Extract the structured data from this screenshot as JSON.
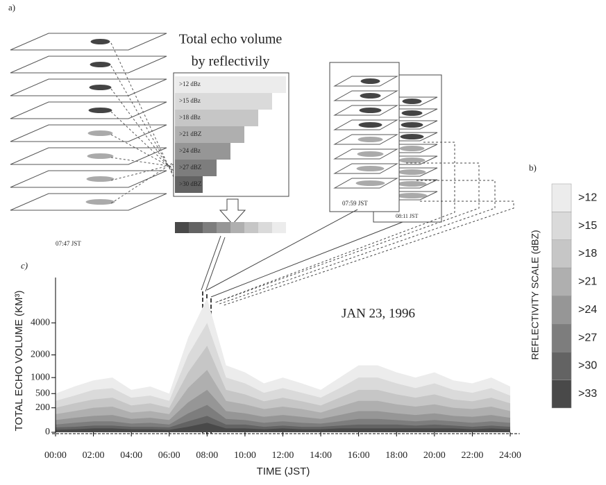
{
  "chart_data": {
    "type": "area",
    "title": "JAN 23, 1996",
    "xlabel": "TIME (JST)",
    "ylabel": "TOTAL ECHO VOLUME (KM³)",
    "legend_title": "REFLECTIVITY SCALE (dBZ)",
    "panel_labels": [
      "a)",
      "b)",
      "c)"
    ],
    "panel_a": {
      "title_lines": [
        "Total echo volume",
        "by reflectivily"
      ],
      "thresholds": [
        ">12 dBz",
        ">15 dBz",
        ">18 dBz",
        ">21 dBZ",
        ">24 dBz",
        ">27 dBZ",
        ">30 dBZ"
      ],
      "times": [
        "07:47 JST",
        "07:59 JST",
        "08:11 JST"
      ]
    },
    "yscale": "sqrt",
    "x": [
      0,
      1,
      2,
      3,
      4,
      5,
      6,
      7,
      8,
      9,
      10,
      11,
      12,
      13,
      14,
      15,
      16,
      17,
      18,
      19,
      20,
      21,
      22,
      23,
      24
    ],
    "xlim": [
      0,
      24.5
    ],
    "xticks": [
      {
        "value": 0,
        "label": "00:00"
      },
      {
        "value": 2,
        "label": "02:00"
      },
      {
        "value": 4,
        "label": "04:00"
      },
      {
        "value": 6,
        "label": "06:00"
      },
      {
        "value": 8,
        "label": "08:00"
      },
      {
        "value": 10,
        "label": "10:00"
      },
      {
        "value": 12,
        "label": "12:00"
      },
      {
        "value": 14,
        "label": "14:00"
      },
      {
        "value": 16,
        "label": "16:00"
      },
      {
        "value": 18,
        "label": "18:00"
      },
      {
        "value": 20,
        "label": "20:00"
      },
      {
        "value": 22,
        "label": "22:00"
      },
      {
        "value": 24,
        "label": "24:00"
      }
    ],
    "ylim": [
      0,
      8000
    ],
    "yticks": [
      0,
      200,
      500,
      1000,
      2000,
      4000
    ],
    "series": [
      {
        "name": ">12",
        "color": "#ececec",
        "values": [
          500,
          700,
          900,
          1000,
          600,
          700,
          500,
          3000,
          6000,
          1500,
          1200,
          800,
          1000,
          800,
          600,
          1000,
          1500,
          1500,
          1200,
          1000,
          1200,
          900,
          800,
          1000,
          700
        ]
      },
      {
        "name": ">15",
        "color": "#dadada",
        "values": [
          330,
          450,
          600,
          650,
          400,
          450,
          330,
          2000,
          4000,
          1000,
          800,
          520,
          650,
          520,
          400,
          650,
          1000,
          1000,
          800,
          650,
          800,
          600,
          520,
          650,
          450
        ]
      },
      {
        "name": ">18",
        "color": "#c6c6c6",
        "values": [
          200,
          280,
          360,
          400,
          240,
          280,
          200,
          1200,
          2500,
          600,
          480,
          320,
          400,
          320,
          240,
          400,
          600,
          600,
          480,
          400,
          480,
          360,
          320,
          400,
          280
        ]
      },
      {
        "name": ">21",
        "color": "#afafaf",
        "values": [
          110,
          150,
          200,
          220,
          130,
          150,
          110,
          660,
          1300,
          330,
          260,
          180,
          220,
          180,
          130,
          220,
          330,
          330,
          260,
          220,
          260,
          200,
          180,
          220,
          150
        ]
      },
      {
        "name": ">24",
        "color": "#969696",
        "values": [
          50,
          70,
          90,
          100,
          60,
          70,
          50,
          300,
          600,
          150,
          120,
          80,
          100,
          80,
          60,
          100,
          150,
          150,
          120,
          100,
          120,
          90,
          80,
          100,
          70
        ]
      },
      {
        "name": ">27",
        "color": "#7d7d7d",
        "values": [
          20,
          30,
          40,
          40,
          25,
          30,
          20,
          120,
          250,
          60,
          50,
          30,
          40,
          30,
          25,
          40,
          60,
          60,
          50,
          40,
          50,
          40,
          30,
          40,
          30
        ]
      },
      {
        "name": ">30",
        "color": "#636363",
        "values": [
          8,
          10,
          15,
          15,
          10,
          10,
          8,
          40,
          90,
          20,
          20,
          10,
          15,
          10,
          10,
          15,
          20,
          20,
          20,
          15,
          20,
          15,
          10,
          15,
          10
        ]
      },
      {
        "name": ">33",
        "color": "#494949",
        "values": [
          2,
          3,
          5,
          5,
          3,
          3,
          2,
          10,
          30,
          5,
          5,
          3,
          5,
          3,
          3,
          5,
          5,
          5,
          5,
          5,
          5,
          5,
          3,
          5,
          3
        ]
      }
    ]
  }
}
